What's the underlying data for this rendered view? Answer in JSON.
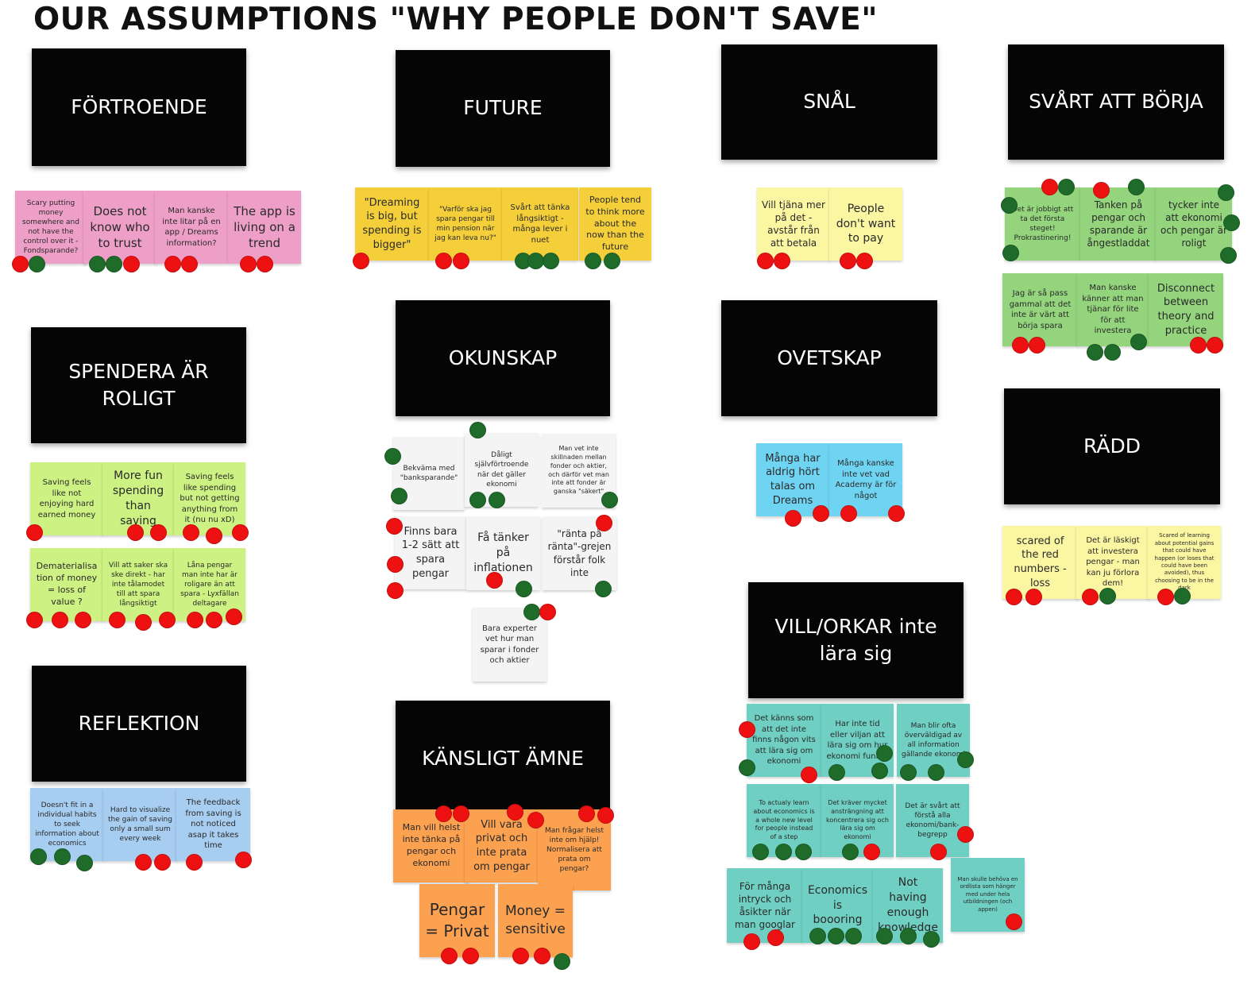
{
  "title": "OUR ASSUMPTIONS \"WHY PEOPLE DON'T SAVE\"",
  "colors": {
    "pink": "#ee9fc8",
    "yellow": "#f4cf3a",
    "lightyellow": "#fbf6a2",
    "green": "#93d47d",
    "lime": "#cdf182",
    "white": "#f4f4f4",
    "cyan": "#6fd3f2",
    "blue": "#a7cdf0",
    "orange": "#fba150",
    "teal": "#6fcfc2",
    "red_dot": "#ee1111",
    "green_dot": "#1f6b2a"
  },
  "categories": [
    {
      "id": "fortroende",
      "label": "FÖRTROENDE"
    },
    {
      "id": "future",
      "label": "FUTURE"
    },
    {
      "id": "snal",
      "label": "SNÅL"
    },
    {
      "id": "svart-att-borja",
      "label": "SVÅRT ATT BÖRJA"
    },
    {
      "id": "spendera-ar-roligt",
      "label": "SPENDERA ÄR ROLIGT"
    },
    {
      "id": "okunskap",
      "label": "OKUNSKAP"
    },
    {
      "id": "ovetskap",
      "label": "OVETSKAP"
    },
    {
      "id": "radd",
      "label": "RÄDD"
    },
    {
      "id": "reflektion",
      "label": "REFLEKTION"
    },
    {
      "id": "kansligt-amne",
      "label": "KÄNSLIGT ÄMNE"
    },
    {
      "id": "vill-orkar",
      "label": "VILL/ORKAR inte lära sig"
    }
  ],
  "notes": [
    {
      "category": "fortroende",
      "color": "pink",
      "text": "Scary putting money somewhere and not have the control over it - Fondsparande?",
      "votes": {
        "red": 1,
        "green": 1
      }
    },
    {
      "category": "fortroende",
      "color": "pink",
      "text": "Does not know who to trust",
      "votes": {
        "red": 1,
        "green": 2
      }
    },
    {
      "category": "fortroende",
      "color": "pink",
      "text": "Man kanske inte litar på en app / Dreams information?",
      "votes": {
        "red": 2,
        "green": 0
      }
    },
    {
      "category": "fortroende",
      "color": "pink",
      "text": "The app is living on a trend",
      "votes": {
        "red": 2,
        "green": 0
      }
    },
    {
      "category": "future",
      "color": "yellow",
      "text": "\"Dreaming is big, but spending is bigger\"",
      "votes": {
        "red": 1,
        "green": 0
      }
    },
    {
      "category": "future",
      "color": "yellow",
      "text": "\"Varför ska jag spara pengar till min pension när jag kan leva nu?\"",
      "votes": {
        "red": 2,
        "green": 0
      }
    },
    {
      "category": "future",
      "color": "yellow",
      "text": "Svårt att tänka långsiktigt - många lever i nuet",
      "votes": {
        "red": 0,
        "green": 3
      }
    },
    {
      "category": "future",
      "color": "yellow",
      "text": "People tend to think more about the now than the future",
      "votes": {
        "red": 0,
        "green": 2
      }
    },
    {
      "category": "snal",
      "color": "lightyellow",
      "text": "Vill tjäna mer på det - avstår från att betala",
      "votes": {
        "red": 2,
        "green": 0
      }
    },
    {
      "category": "snal",
      "color": "lightyellow",
      "text": "People don't want to pay",
      "votes": {
        "red": 2,
        "green": 0
      }
    },
    {
      "category": "svart-att-borja",
      "color": "green",
      "text": "Det är jobbigt att ta det första steget! Prokrastinering!",
      "votes": {
        "red": 1,
        "green": 3
      }
    },
    {
      "category": "svart-att-borja",
      "color": "green",
      "text": "Tanken på pengar och sparande är ångestladdat",
      "votes": {
        "red": 1,
        "green": 1
      }
    },
    {
      "category": "svart-att-borja",
      "color": "green",
      "text": "tycker inte att ekonomi och pengar är roligt",
      "votes": {
        "red": 0,
        "green": 3
      }
    },
    {
      "category": "svart-att-borja",
      "color": "green",
      "text": "Jag är så pass gammal att det inte är värt att börja spara",
      "votes": {
        "red": 2,
        "green": 0
      }
    },
    {
      "category": "svart-att-borja",
      "color": "green",
      "text": "Man kanske känner att man tjänar för lite för att investera",
      "votes": {
        "red": 0,
        "green": 3
      }
    },
    {
      "category": "svart-att-borja",
      "color": "green",
      "text": "Disconnect between theory and practice",
      "votes": {
        "red": 2,
        "green": 0
      }
    },
    {
      "category": "spendera-ar-roligt",
      "color": "lime",
      "text": "Saving feels like not enjoying hard earned money",
      "votes": {
        "red": 1,
        "green": 0
      }
    },
    {
      "category": "spendera-ar-roligt",
      "color": "lime",
      "text": "More fun spending than saving",
      "votes": {
        "red": 2,
        "green": 0
      }
    },
    {
      "category": "spendera-ar-roligt",
      "color": "lime",
      "text": "Saving feels like spending but not getting anything from it (nu nu xD)",
      "votes": {
        "red": 3,
        "green": 0
      }
    },
    {
      "category": "spendera-ar-roligt",
      "color": "lime",
      "text": "Dematerialisation of money = loss of value ?",
      "votes": {
        "red": 3,
        "green": 0
      }
    },
    {
      "category": "spendera-ar-roligt",
      "color": "lime",
      "text": "Vill att saker ska ske direkt - har inte tålamodet till att spara långsiktigt",
      "votes": {
        "red": 3,
        "green": 0
      }
    },
    {
      "category": "spendera-ar-roligt",
      "color": "lime",
      "text": "Låna pengar man inte har är roligare än att spara - Lyxfällan deltagare",
      "votes": {
        "red": 3,
        "green": 0
      }
    },
    {
      "category": "okunskap",
      "color": "white",
      "text": "Bekväma med \"banksparande\"",
      "votes": {
        "red": 0,
        "green": 2
      }
    },
    {
      "category": "okunskap",
      "color": "white",
      "text": "Dåligt självförtroende när det gäller ekonomi",
      "votes": {
        "red": 0,
        "green": 3
      }
    },
    {
      "category": "okunskap",
      "color": "white",
      "text": "Man vet inte skillnaden mellan fonder och aktier, och därför vet man inte att fonder är ganska \"säkert\"",
      "votes": {
        "red": 0,
        "green": 1
      }
    },
    {
      "category": "okunskap",
      "color": "white",
      "text": "Finns bara 1-2 sätt att spara pengar",
      "votes": {
        "red": 3,
        "green": 0
      }
    },
    {
      "category": "okunskap",
      "color": "white",
      "text": "Få tänker på inflationen",
      "votes": {
        "red": 1,
        "green": 1
      }
    },
    {
      "category": "okunskap",
      "color": "white",
      "text": "\"ränta på ränta\"-grejen förstår folk inte",
      "votes": {
        "red": 1,
        "green": 1
      }
    },
    {
      "category": "okunskap",
      "color": "white",
      "text": "Bara experter vet hur man sparar i fonder och aktier",
      "votes": {
        "red": 1,
        "green": 1
      }
    },
    {
      "category": "ovetskap",
      "color": "cyan",
      "text": "Många har aldrig hört talas om Dreams",
      "votes": {
        "red": 2,
        "green": 0
      }
    },
    {
      "category": "ovetskap",
      "color": "cyan",
      "text": "Många kanske inte vet vad Academy är för något",
      "votes": {
        "red": 2,
        "green": 0
      }
    },
    {
      "category": "radd",
      "color": "lightyellow",
      "text": "scared of the red numbers - loss",
      "votes": {
        "red": 2,
        "green": 0
      }
    },
    {
      "category": "radd",
      "color": "lightyellow",
      "text": "Det är läskigt att investera pengar - man kan ju förlora dem!",
      "votes": {
        "red": 1,
        "green": 1
      }
    },
    {
      "category": "radd",
      "color": "lightyellow",
      "text": "Scared of learning about potential gains that could have happen (or loses that could have been avoided), thus choosing to be in the dark",
      "votes": {
        "red": 1,
        "green": 1
      }
    },
    {
      "category": "reflektion",
      "color": "blue",
      "text": "Doesn't fit in a individual habits to seek information about economics",
      "votes": {
        "red": 0,
        "green": 3
      }
    },
    {
      "category": "reflektion",
      "color": "blue",
      "text": "Hard to visualize the gain of saving only a small sum every week",
      "votes": {
        "red": 2,
        "green": 0
      }
    },
    {
      "category": "reflektion",
      "color": "blue",
      "text": "The feedback from saving is not noticed asap it takes time",
      "votes": {
        "red": 2,
        "green": 0
      }
    },
    {
      "category": "kansligt-amne",
      "color": "orange",
      "text": "Man vill helst inte tänka på pengar och ekonomi",
      "votes": {
        "red": 2,
        "green": 0
      }
    },
    {
      "category": "kansligt-amne",
      "color": "orange",
      "text": "Vill vara privat och inte prata om pengar",
      "votes": {
        "red": 2,
        "green": 0
      }
    },
    {
      "category": "kansligt-amne",
      "color": "orange",
      "text": "Man frågar helst inte om hjälp! Normalisera att prata om pengar?",
      "votes": {
        "red": 2,
        "green": 0
      }
    },
    {
      "category": "kansligt-amne",
      "color": "orange",
      "text": "Pengar = Privat",
      "votes": {
        "red": 2,
        "green": 0
      }
    },
    {
      "category": "kansligt-amne",
      "color": "orange",
      "text": "Money = sensitive",
      "votes": {
        "red": 2,
        "green": 1
      }
    },
    {
      "category": "vill-orkar",
      "color": "teal",
      "text": "Det känns som att det inte finns någon vits att lära sig om ekonomi",
      "votes": {
        "red": 2,
        "green": 1
      }
    },
    {
      "category": "vill-orkar",
      "color": "teal",
      "text": "Har inte tid eller viljan att lära sig om hur ekonomi funkar",
      "votes": {
        "red": 0,
        "green": 3
      }
    },
    {
      "category": "vill-orkar",
      "color": "teal",
      "text": "Man blir ofta överväldigad av all information gällande ekonomi",
      "votes": {
        "red": 0,
        "green": 3
      }
    },
    {
      "category": "vill-orkar",
      "color": "teal",
      "text": "To actualy learn about economics is a whole new level for people instead of a step",
      "votes": {
        "red": 0,
        "green": 3
      }
    },
    {
      "category": "vill-orkar",
      "color": "teal",
      "text": "Det kräver mycket ansträngning att koncentrera sig och lära sig om ekonomi",
      "votes": {
        "red": 1,
        "green": 1
      }
    },
    {
      "category": "vill-orkar",
      "color": "teal",
      "text": "Det är svårt att förstå alla ekonomi/bank-begrepp",
      "votes": {
        "red": 2,
        "green": 0
      }
    },
    {
      "category": "vill-orkar",
      "color": "teal",
      "text": "För många intryck och åsikter när man googlar",
      "votes": {
        "red": 2,
        "green": 0
      }
    },
    {
      "category": "vill-orkar",
      "color": "teal",
      "text": "Economics is boooring",
      "votes": {
        "red": 0,
        "green": 3
      }
    },
    {
      "category": "vill-orkar",
      "color": "teal",
      "text": "Not having enough knowledge",
      "votes": {
        "red": 0,
        "green": 3
      }
    },
    {
      "category": "vill-orkar",
      "color": "teal",
      "text": "Man skulle behöva en ordlista som hänger med under hela utbildningen (och appen)",
      "votes": {
        "red": 1,
        "green": 0
      }
    }
  ]
}
